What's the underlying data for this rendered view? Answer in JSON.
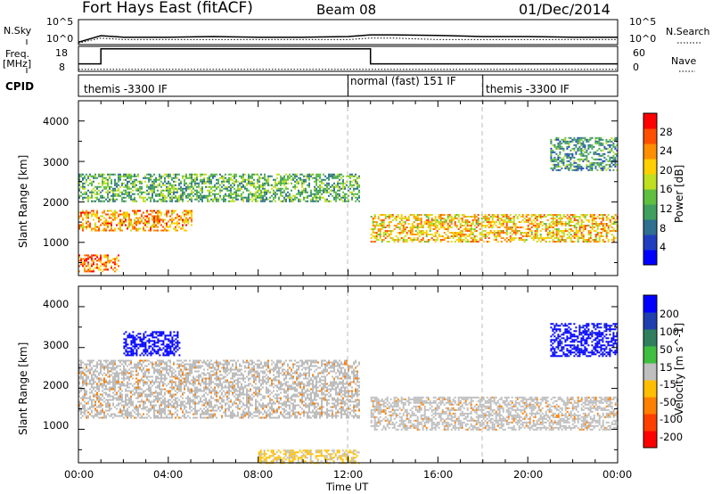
{
  "header": {
    "station": "Fort Hays East (fitACF)",
    "beam": "Beam 08",
    "date": "01/Dec/2014"
  },
  "top_panel": {
    "left_label": "N.Sky",
    "right_label": "N.Search",
    "ylabels_left": [
      "10^5",
      "10^0"
    ],
    "ylabels_right": [
      "10^5",
      "10^0"
    ]
  },
  "freq_panel": {
    "left_label": "Freq.",
    "left_unit": "[MHz]",
    "right_label": "Nave",
    "ylabels_left": [
      "18",
      "8"
    ],
    "ylabels_right": [
      "60",
      "0"
    ]
  },
  "cpid_panel": {
    "label": "CPID",
    "segments": [
      {
        "name": "themis -3300 IF",
        "start_hour": 0
      },
      {
        "name": "normal (fast) 151 IF",
        "start_hour": 12
      },
      {
        "name": "themis -3300 IF",
        "start_hour": 18
      }
    ]
  },
  "time_axis": {
    "label": "Time UT",
    "ticks": [
      "00:00",
      "04:00",
      "08:00",
      "12:00",
      "16:00",
      "20:00",
      "00:00"
    ]
  },
  "colors": {
    "power_scale": [
      "#0000ff",
      "#1f3fbf",
      "#2f6f8f",
      "#3f9f5f",
      "#5fbf3f",
      "#bfdf1f",
      "#ffcf00",
      "#ff8f00",
      "#ff4f00",
      "#ff0000"
    ],
    "velocity_scale": [
      "#0000ff",
      "#1f3faf",
      "#2f7f5f",
      "#3fbf3f",
      "#bfbfbf",
      "#ffbf00",
      "#ff7f00",
      "#ff3f00",
      "#ff0000"
    ],
    "ground_scatter": "#bdbdbd"
  },
  "chart_data": [
    {
      "type": "line",
      "panel": "N.Sky / N.Search",
      "x_unit": "hours UT",
      "x": [
        0,
        1,
        2,
        4,
        6,
        8,
        10,
        12,
        13,
        14,
        16,
        18,
        20,
        22,
        24
      ],
      "series": [
        {
          "name": "N.Sky",
          "values": [
            3,
            60,
            30,
            30,
            40,
            30,
            30,
            40,
            90,
            90,
            70,
            40,
            40,
            30,
            30
          ]
        },
        {
          "name": "N.Search",
          "values": [
            2,
            20,
            10,
            10,
            10,
            10,
            10,
            10,
            20,
            20,
            10,
            10,
            10,
            10,
            10
          ]
        }
      ],
      "yscale": "log",
      "ylim": [
        1,
        100000
      ],
      "ylabel": "N.Sky"
    },
    {
      "type": "line",
      "panel": "Freq. / Nave",
      "x_unit": "hours UT",
      "x": [
        0,
        1,
        1,
        13,
        13,
        24
      ],
      "series": [
        {
          "name": "Freq.",
          "values": [
            11,
            11,
            17,
            17,
            11,
            11
          ]
        },
        {
          "name": "Nave",
          "values": [
            5,
            5,
            5,
            5,
            5,
            5
          ]
        }
      ],
      "ylim": [
        8,
        18
      ],
      "ylabel": "Freq. [MHz]"
    },
    {
      "type": "heatmap",
      "panel": "Power",
      "x_unit": "hours UT",
      "xlim": [
        0,
        24
      ],
      "ylim": [
        180,
        4500
      ],
      "ylabel": "Slant Range [km]",
      "yticks": [
        1000,
        2000,
        3000,
        4000
      ],
      "colorbar": {
        "label": "Power [dB]",
        "ticks": [
          4,
          8,
          12,
          16,
          20,
          24,
          28
        ],
        "range": [
          0,
          30
        ]
      },
      "features": [
        {
          "hours": [
            0,
            1.8
          ],
          "range_km": [
            300,
            700
          ],
          "value_db": 24
        },
        {
          "hours": [
            0,
            5
          ],
          "range_km": [
            1300,
            1800
          ],
          "value_db": 22
        },
        {
          "hours": [
            0,
            12.5
          ],
          "range_km": [
            2000,
            2700
          ],
          "value_db": 12
        },
        {
          "hours": [
            13,
            24
          ],
          "range_km": [
            1000,
            1700
          ],
          "value_db": 20
        },
        {
          "hours": [
            21,
            24
          ],
          "range_km": [
            2800,
            3600
          ],
          "value_db": 10
        }
      ]
    },
    {
      "type": "heatmap",
      "panel": "Velocity",
      "x_unit": "hours UT",
      "xlim": [
        0,
        24
      ],
      "ylim": [
        180,
        4500
      ],
      "ylabel": "Slant Range [km]",
      "yticks": [
        1000,
        2000,
        3000,
        4000
      ],
      "colorbar": {
        "label": "Velocity [m s^-1]",
        "ticks": [
          200,
          100,
          50,
          15,
          -15,
          -50,
          -100,
          -200
        ],
        "range": [
          -250,
          250
        ]
      },
      "features": [
        {
          "hours": [
            0,
            12.5
          ],
          "range_km": [
            1300,
            2700
          ],
          "value_ms": 0
        },
        {
          "hours": [
            13,
            24
          ],
          "range_km": [
            1000,
            1800
          ],
          "value_ms": 0
        },
        {
          "hours": [
            2,
            4.5
          ],
          "range_km": [
            2800,
            3400
          ],
          "value_ms": 250
        },
        {
          "hours": [
            21,
            24
          ],
          "range_km": [
            2800,
            3600
          ],
          "value_ms": 220
        },
        {
          "hours": [
            8,
            12.5
          ],
          "range_km": [
            180,
            500
          ],
          "value_ms": -40
        }
      ]
    }
  ]
}
